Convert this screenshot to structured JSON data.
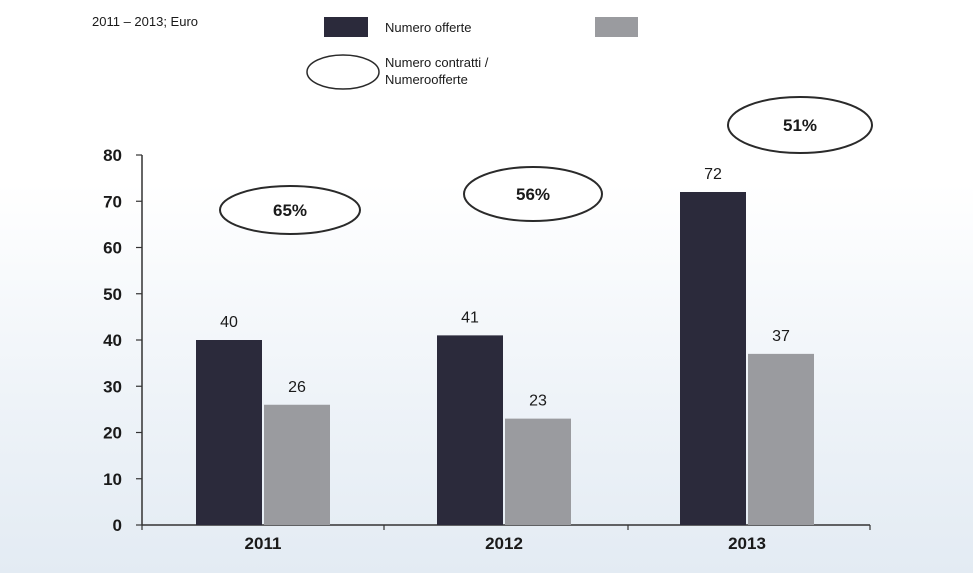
{
  "subtitle": "2011 – 2013; Euro",
  "legend": {
    "series_1": "Numero offerte",
    "series_2": "",
    "ratio_line1": "Numero contratti /",
    "ratio_line2": "Numeroofferte"
  },
  "colors": {
    "series_1": "#2b2a3b",
    "series_2": "#9a9b9f",
    "ellipse_stroke": "#2a2a2a",
    "ellipse_fill": "#ffffff"
  },
  "chart_data": {
    "type": "bar",
    "categories": [
      "2011",
      "2012",
      "2013"
    ],
    "series": [
      {
        "name": "Numero offerte",
        "values": [
          40,
          41,
          72
        ]
      },
      {
        "values": [
          26,
          23,
          37
        ]
      }
    ],
    "ratio_labels": [
      "65%",
      "56%",
      "51%"
    ],
    "ylim": [
      0,
      80
    ],
    "yticks": [
      0,
      10,
      20,
      30,
      40,
      50,
      60,
      70,
      80
    ],
    "grid": false
  }
}
